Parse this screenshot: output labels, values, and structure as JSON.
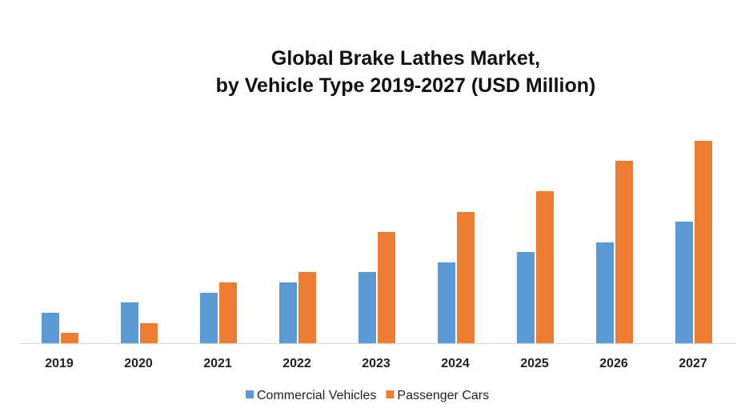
{
  "chart_data": {
    "type": "bar",
    "title": "Global Brake Lathes Market,",
    "subtitle": "by Vehicle Type 2019-2027 (USD Million)",
    "xlabel": "",
    "ylabel": "",
    "ylim": [
      0,
      260
    ],
    "grid": false,
    "legend_position": "bottom",
    "categories": [
      "2019",
      "2020",
      "2021",
      "2022",
      "2023",
      "2024",
      "2025",
      "2026",
      "2027"
    ],
    "series": [
      {
        "name": "Commercial Vehicles",
        "color": "#5B9BD5",
        "values": [
          38,
          51,
          63,
          76,
          89,
          101,
          114,
          126,
          152
        ]
      },
      {
        "name": "Passenger Cars",
        "color": "#ED7D31",
        "values": [
          13,
          25,
          76,
          89,
          139,
          164,
          190,
          228,
          253
        ]
      }
    ]
  }
}
